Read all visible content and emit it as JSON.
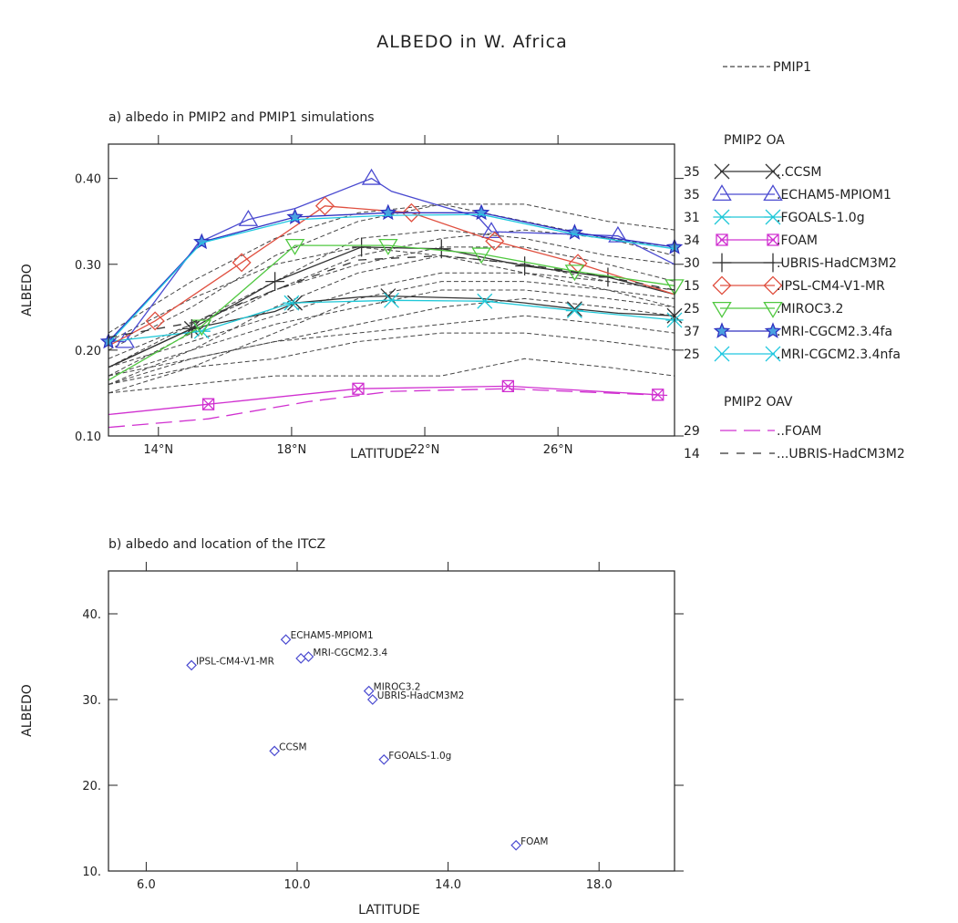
{
  "figure": {
    "title": "ALBEDO in W. Africa",
    "pmip1_legend": "PMIP1"
  },
  "chart_data": [
    {
      "type": "line",
      "title": "a) albedo in PMIP2 and PMIP1 simulations",
      "xlabel": "LATITUDE",
      "ylabel": "ALBEDO",
      "xlim": [
        12.5,
        29.5
      ],
      "ylim": [
        0.1,
        0.44
      ],
      "x_ticks": [
        {
          "value": 14,
          "label": "14°N"
        },
        {
          "value": 18,
          "label": "18°N"
        },
        {
          "value": 22,
          "label": "22°N"
        },
        {
          "value": 26,
          "label": "26°N"
        }
      ],
      "y_ticks": [
        {
          "value": 0.1,
          "label": "0.10"
        },
        {
          "value": 0.2,
          "label": "0.20"
        },
        {
          "value": 0.3,
          "label": "0.30"
        },
        {
          "value": 0.4,
          "label": "0.40"
        }
      ],
      "grid": false,
      "legend_position": "right",
      "legend_groups": [
        {
          "title": "PMIP2 OA"
        },
        {
          "title": "PMIP2 OAV"
        }
      ],
      "series": [
        {
          "name": "CCSM",
          "legend_label": "..CCSM",
          "legend_value": "35",
          "group": 0,
          "color": "#333333",
          "marker": "x",
          "dash": "solid",
          "x": [
            12.5,
            15.0,
            17.5,
            18.1,
            20.1,
            20.9,
            23.7,
            25.0,
            26.5,
            27.8,
            29.5
          ],
          "y": [
            0.18,
            0.225,
            0.245,
            0.255,
            0.262,
            0.263,
            0.26,
            0.255,
            0.248,
            0.243,
            0.24
          ],
          "markers_at": [
            1,
            3,
            5,
            8,
            10
          ]
        },
        {
          "name": "ECHAM5-MPIOM1",
          "legend_label": ".ECHAM5-MPIOM1",
          "legend_value": "35",
          "group": 0,
          "color": "#4a4ad0",
          "marker": "triangle-up",
          "dash": "solid",
          "x": [
            12.5,
            13.0,
            15.2,
            16.7,
            18.1,
            20.4,
            21.0,
            23.6,
            24.0,
            26.5,
            27.8,
            29.5
          ],
          "y": [
            0.21,
            0.21,
            0.325,
            0.352,
            0.365,
            0.4,
            0.385,
            0.355,
            0.338,
            0.335,
            0.333,
            0.3
          ],
          "markers_at": [
            1,
            3,
            5,
            8,
            10
          ]
        },
        {
          "name": "FGOALS-1.0g",
          "legend_label": ".FGOALS-1.0g",
          "legend_value": "31",
          "group": 0,
          "color": "#20c8d8",
          "marker": "asterisk",
          "dash": "solid",
          "x": [
            12.5,
            15.3,
            18.0,
            21.0,
            23.8,
            26.5,
            29.5
          ],
          "y": [
            0.21,
            0.222,
            0.255,
            0.258,
            0.257,
            0.246,
            0.235
          ],
          "markers_at": [
            1,
            2,
            3,
            4,
            5,
            6
          ]
        },
        {
          "name": "FOAM",
          "legend_label": ".FOAM",
          "legend_value": "34",
          "group": 0,
          "color": "#d030d0",
          "marker": "box-x",
          "dash": "solid",
          "x": [
            12.5,
            15.5,
            20.0,
            24.5,
            29.0
          ],
          "y": [
            0.125,
            0.137,
            0.155,
            0.158,
            0.148
          ],
          "markers_at": [
            1,
            2,
            3,
            4
          ]
        },
        {
          "name": "UBRIS-HadCM3M2",
          "legend_label": ".UBRIS-HadCM3M2",
          "legend_value": "30",
          "group": 0,
          "color": "#333333",
          "marker": "plus",
          "dash": "solid",
          "x": [
            12.5,
            15.0,
            17.5,
            20.1,
            22.5,
            25.0,
            27.5,
            29.5
          ],
          "y": [
            0.18,
            0.225,
            0.28,
            0.32,
            0.318,
            0.298,
            0.285,
            0.265
          ],
          "markers_at": [
            1,
            2,
            3,
            4,
            5,
            6
          ]
        },
        {
          "name": "IPSL-CM4-V1-MR",
          "legend_label": ".IPSL-CM4-V1-MR",
          "legend_value": "15",
          "group": 0,
          "color": "#e05040",
          "marker": "diamond",
          "dash": "solid",
          "x": [
            12.5,
            13.9,
            16.5,
            19.0,
            21.6,
            24.1,
            26.6,
            29.5
          ],
          "y": [
            0.205,
            0.234,
            0.302,
            0.368,
            0.36,
            0.327,
            0.301,
            0.265
          ],
          "markers_at": [
            1,
            2,
            3,
            4,
            5,
            6
          ]
        },
        {
          "name": "MIROC3.2",
          "legend_label": ".MIROC3.2",
          "legend_value": "25",
          "group": 0,
          "color": "#50c840",
          "marker": "triangle-down",
          "dash": "solid",
          "x": [
            12.5,
            15.3,
            18.1,
            20.9,
            23.7,
            26.5,
            29.5
          ],
          "y": [
            0.165,
            0.228,
            0.322,
            0.322,
            0.312,
            0.292,
            0.275
          ],
          "markers_at": [
            1,
            2,
            3,
            4,
            5,
            6
          ]
        },
        {
          "name": "MRI-CGCM2.3.4fa",
          "legend_label": ".MRI-CGCM2.3.4fa",
          "legend_value": "37",
          "group": 0,
          "color": "#3030c0",
          "marker": "star",
          "dash": "solid",
          "x": [
            12.5,
            15.3,
            18.1,
            20.9,
            23.7,
            26.5,
            29.5
          ],
          "y": [
            0.21,
            0.326,
            0.355,
            0.36,
            0.36,
            0.337,
            0.32
          ],
          "markers_at": [
            0,
            1,
            2,
            3,
            4,
            5,
            6
          ]
        },
        {
          "name": "MRI-CGCM2.3.4nfa",
          "legend_label": ".MRI-CGCM2.3.4nfa",
          "legend_value": "25",
          "group": 0,
          "color": "#20c8e0",
          "marker": "x",
          "dash": "solid",
          "x": [
            12.5,
            15.3,
            18.1,
            20.9,
            23.7,
            26.5,
            29.5
          ],
          "y": [
            0.208,
            0.325,
            0.352,
            0.357,
            0.358,
            0.335,
            0.318
          ],
          "markers_at": []
        },
        {
          "name": "FOAM",
          "legend_label": "..FOAM",
          "legend_value": "29",
          "group": 1,
          "color": "#d030d0",
          "marker": "none",
          "dash": "longdash",
          "x": [
            12.5,
            15.5,
            18.5,
            21.0,
            24.5,
            27.5,
            29.5
          ],
          "y": [
            0.11,
            0.12,
            0.14,
            0.152,
            0.155,
            0.15,
            0.147
          ],
          "markers_at": []
        },
        {
          "name": "UBRIS-HadCM3M2",
          "legend_label": "...UBRIS-HadCM3M2",
          "legend_value": "14",
          "group": 1,
          "color": "#333333",
          "marker": "none",
          "dash": "medium",
          "x": [
            12.5,
            15.0,
            17.5,
            20.0,
            22.5,
            25.0,
            27.5,
            29.5
          ],
          "y": [
            0.215,
            0.232,
            0.27,
            0.305,
            0.31,
            0.3,
            0.285,
            0.27
          ],
          "markers_at": []
        }
      ],
      "pmip1_series": [
        {
          "x": [
            12.5,
            15,
            17.5,
            20,
            22.5,
            25,
            27.5,
            29.5
          ],
          "y": [
            0.16,
            0.2,
            0.25,
            0.29,
            0.31,
            0.3,
            0.28,
            0.27
          ]
        },
        {
          "x": [
            12.5,
            15,
            17.5,
            20,
            22.5,
            25,
            27.5,
            29.5
          ],
          "y": [
            0.17,
            0.22,
            0.27,
            0.3,
            0.32,
            0.32,
            0.3,
            0.28
          ]
        },
        {
          "x": [
            12.5,
            15,
            17.5,
            20,
            22.5,
            25,
            27.5,
            29.5
          ],
          "y": [
            0.18,
            0.23,
            0.28,
            0.33,
            0.34,
            0.33,
            0.31,
            0.3
          ]
        },
        {
          "x": [
            12.5,
            15,
            17.5,
            20,
            22.5,
            25,
            27.5,
            29.5
          ],
          "y": [
            0.2,
            0.25,
            0.31,
            0.35,
            0.37,
            0.37,
            0.35,
            0.34
          ]
        },
        {
          "x": [
            12.5,
            15,
            17.5,
            20,
            22.5,
            25,
            27.5,
            29.5
          ],
          "y": [
            0.22,
            0.28,
            0.33,
            0.36,
            0.37,
            0.35,
            0.33,
            0.31
          ]
        },
        {
          "x": [
            12.5,
            15,
            17.5,
            20,
            22.5,
            25,
            27.5,
            29.5
          ],
          "y": [
            0.15,
            0.18,
            0.22,
            0.26,
            0.28,
            0.28,
            0.27,
            0.26
          ]
        },
        {
          "x": [
            12.5,
            15,
            17.5,
            20,
            22.5,
            25,
            27.5,
            29.5
          ],
          "y": [
            0.16,
            0.19,
            0.21,
            0.23,
            0.25,
            0.26,
            0.25,
            0.24
          ]
        },
        {
          "x": [
            12.5,
            15,
            17.5,
            20,
            22.5,
            25,
            27.5,
            29.5
          ],
          "y": [
            0.17,
            0.19,
            0.21,
            0.22,
            0.23,
            0.24,
            0.23,
            0.22
          ]
        },
        {
          "x": [
            12.5,
            15,
            17.5,
            20,
            22.5,
            25,
            27.5,
            29.5
          ],
          "y": [
            0.15,
            0.16,
            0.17,
            0.17,
            0.17,
            0.19,
            0.18,
            0.17
          ]
        },
        {
          "x": [
            12.5,
            15,
            17.5,
            20,
            22.5,
            25,
            27.5,
            29.5
          ],
          "y": [
            0.18,
            0.21,
            0.24,
            0.27,
            0.29,
            0.29,
            0.28,
            0.27
          ]
        },
        {
          "x": [
            12.5,
            15,
            17.5,
            20,
            22.5,
            25,
            27.5,
            29.5
          ],
          "y": [
            0.19,
            0.23,
            0.27,
            0.31,
            0.33,
            0.34,
            0.33,
            0.32
          ]
        },
        {
          "x": [
            12.5,
            15,
            17.5,
            20,
            22.5,
            25,
            27.5,
            29.5
          ],
          "y": [
            0.17,
            0.2,
            0.23,
            0.25,
            0.27,
            0.27,
            0.26,
            0.25
          ]
        },
        {
          "x": [
            12.5,
            15,
            17.5,
            20,
            22.5,
            25,
            27.5,
            29.5
          ],
          "y": [
            0.21,
            0.26,
            0.3,
            0.32,
            0.31,
            0.29,
            0.27,
            0.25
          ]
        },
        {
          "x": [
            12.5,
            15,
            17.5,
            20,
            22.5,
            25,
            27.5,
            29.5
          ],
          "y": [
            0.16,
            0.18,
            0.19,
            0.21,
            0.22,
            0.22,
            0.21,
            0.2
          ]
        }
      ]
    },
    {
      "type": "scatter",
      "title": "b) albedo and location of the ITCZ",
      "xlabel": "LATITUDE",
      "ylabel": "ALBEDO",
      "xlim": [
        5.0,
        20.0
      ],
      "ylim": [
        10,
        45
      ],
      "x_ticks": [
        {
          "value": 6,
          "label": "6.0"
        },
        {
          "value": 10,
          "label": "10.0"
        },
        {
          "value": 14,
          "label": "14.0"
        },
        {
          "value": 18,
          "label": "18.0"
        }
      ],
      "y_ticks": [
        {
          "value": 10,
          "label": "10."
        },
        {
          "value": 20,
          "label": "20."
        },
        {
          "value": 30,
          "label": "30."
        },
        {
          "value": 40,
          "label": "40."
        }
      ],
      "grid": false,
      "marker_color": "#4a4ad0",
      "points": [
        {
          "label": "ECHAM5-MPIOM1",
          "x": 9.7,
          "y": 37
        },
        {
          "label": "MRI-CGCM2.3.4",
          "x": 10.3,
          "y": 35
        },
        {
          "label": "",
          "x": 10.1,
          "y": 34.8
        },
        {
          "label": "IPSL-CM4-V1-MR",
          "x": 7.2,
          "y": 34
        },
        {
          "label": "MIROC3.2",
          "x": 11.9,
          "y": 31
        },
        {
          "label": "UBRIS-HadCM3M2",
          "x": 12.0,
          "y": 30
        },
        {
          "label": "CCSM",
          "x": 9.4,
          "y": 24
        },
        {
          "label": "FGOALS-1.0g",
          "x": 12.3,
          "y": 23
        },
        {
          "label": "FOAM",
          "x": 15.8,
          "y": 13
        }
      ]
    }
  ]
}
